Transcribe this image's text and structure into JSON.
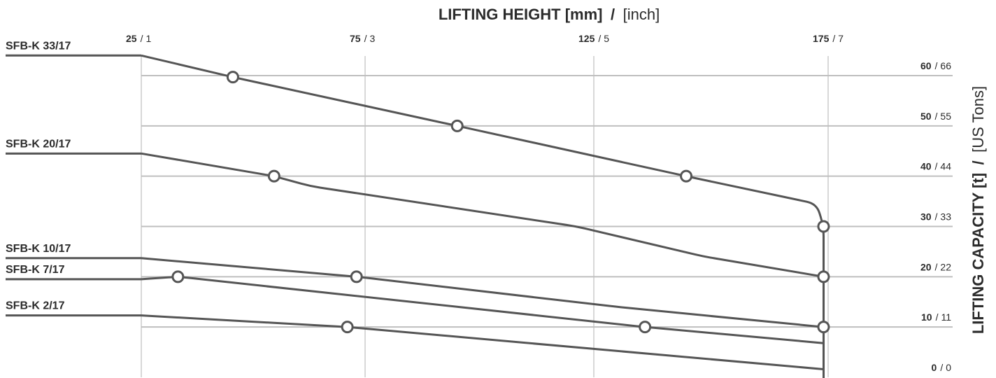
{
  "chart_data": {
    "type": "line",
    "title": {
      "bold": "LIFTING HEIGHT [mm]",
      "separator": "/",
      "regular": "[inch]"
    },
    "ylabel": {
      "bold": "LIFTING CAPACITY [t]",
      "separator": "/",
      "regular": "[US Tons]"
    },
    "x_ticks": [
      {
        "mm": "25",
        "inch": "1",
        "value": 25
      },
      {
        "mm": "75",
        "inch": "3",
        "value": 75
      },
      {
        "mm": "125",
        "inch": "5",
        "value": 125
      },
      {
        "mm": "175",
        "inch": "7",
        "value": 175
      }
    ],
    "y_ticks": [
      {
        "t": "60",
        "us": "66",
        "value": 60
      },
      {
        "t": "50",
        "us": "55",
        "value": 50
      },
      {
        "t": "40",
        "us": "44",
        "value": 40
      },
      {
        "t": "30",
        "us": "33",
        "value": 30
      },
      {
        "t": "20",
        "us": "22",
        "value": 20
      },
      {
        "t": "10",
        "us": "11",
        "value": 10
      },
      {
        "t": "0",
        "us": "0",
        "value": 0
      }
    ],
    "xlim": [
      25,
      175
    ],
    "ylim": [
      0,
      60
    ],
    "series": [
      {
        "name": "SFB-K 33/17",
        "start_capacity": 64,
        "points": [
          [
            25,
            64
          ],
          [
            45,
            59.7
          ],
          [
            94,
            50
          ],
          [
            144,
            40
          ],
          [
            172.5,
            34.5
          ],
          [
            174,
            30
          ],
          [
            174,
            19.8
          ],
          [
            174,
            10
          ],
          [
            174,
            -2
          ]
        ],
        "markers": [
          [
            45,
            59.7
          ],
          [
            94,
            50
          ],
          [
            144,
            40
          ],
          [
            174,
            30
          ]
        ]
      },
      {
        "name": "SFB-K 20/17",
        "start_capacity": 44.5,
        "points": [
          [
            25,
            44.5
          ],
          [
            54,
            40
          ],
          [
            62,
            38
          ],
          [
            120,
            30
          ],
          [
            148,
            24
          ],
          [
            174,
            20
          ]
        ],
        "markers": [
          [
            54,
            40
          ]
        ]
      },
      {
        "name": "SFB-K 10/17",
        "start_capacity": 23.7,
        "points": [
          [
            25,
            23.7
          ],
          [
            72,
            20
          ],
          [
            129,
            14
          ],
          [
            174,
            10
          ]
        ],
        "markers": [
          [
            72,
            20
          ]
        ]
      },
      {
        "name": "SFB-K 7/17",
        "start_capacity": 19.5,
        "points": [
          [
            25,
            19.5
          ],
          [
            33,
            20
          ],
          [
            135,
            10
          ],
          [
            174,
            6.8
          ]
        ],
        "markers": [
          [
            33,
            20
          ],
          [
            135,
            10
          ]
        ]
      },
      {
        "name": "SFB-K 2/17",
        "start_capacity": 12.3,
        "points": [
          [
            25,
            12.3
          ],
          [
            70,
            10
          ],
          [
            174,
            1.6
          ]
        ],
        "markers": [
          [
            70,
            10
          ]
        ]
      }
    ],
    "grid": true,
    "legend": "inline-left"
  }
}
